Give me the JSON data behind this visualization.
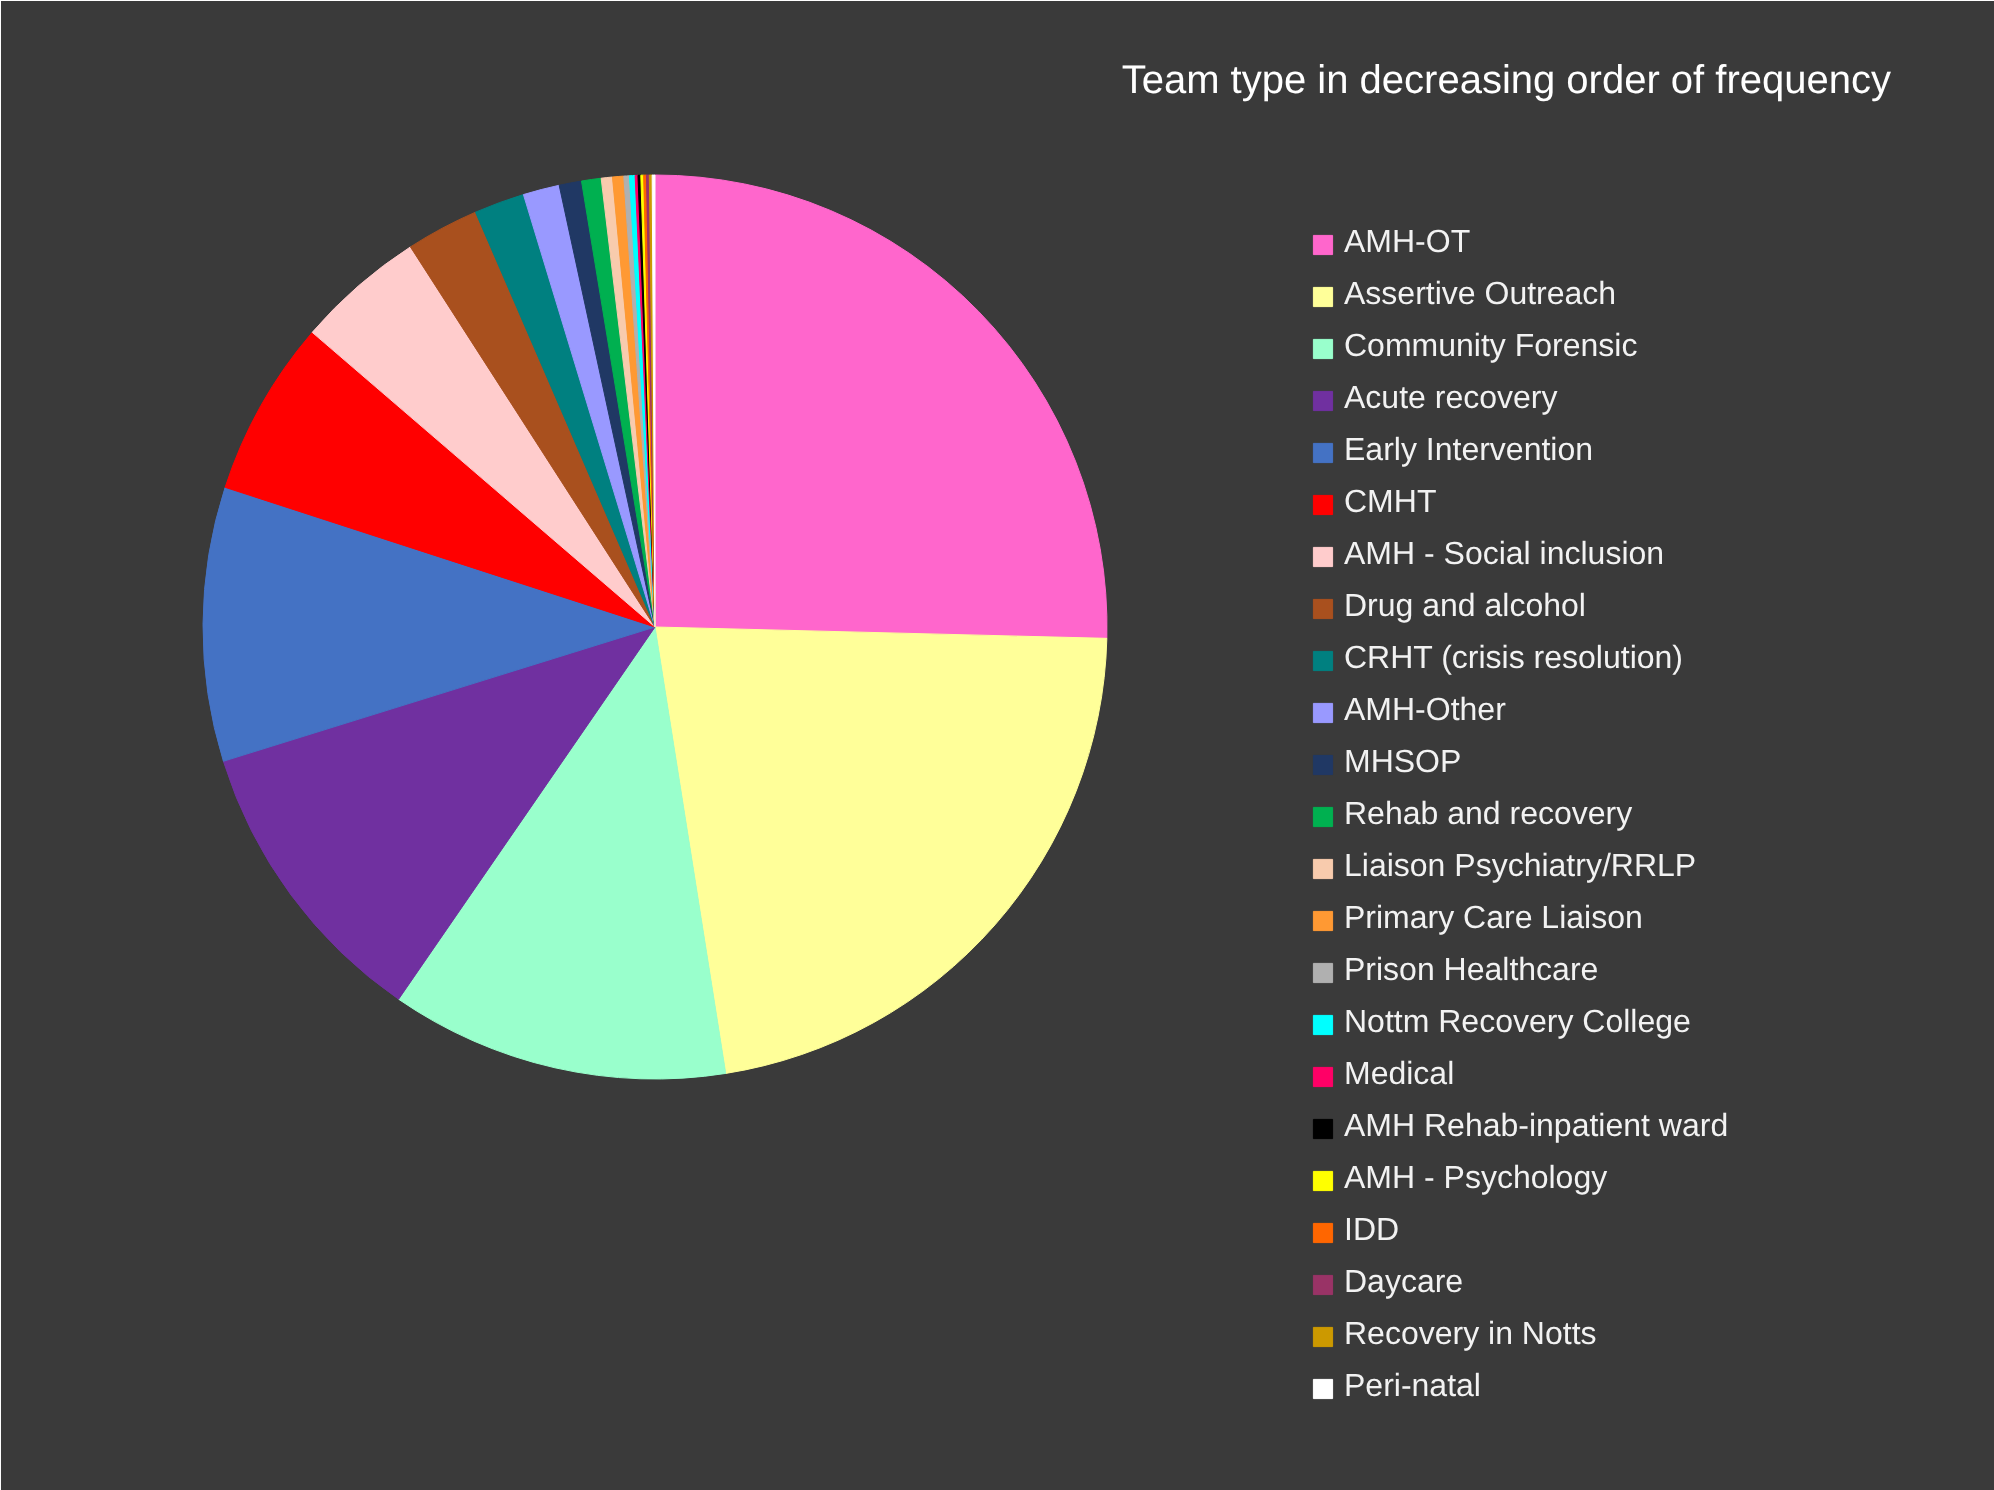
{
  "chart_data": {
    "type": "pie",
    "title": "Team type in decreasing order of frequency",
    "legend": "right",
    "categories": [
      "AMH-OT",
      "Assertive Outreach",
      "Community Forensic",
      "Acute recovery",
      "Early Intervention",
      "CMHT",
      "AMH - Social inclusion",
      "Drug and alcohol",
      "CRHT (crisis resolution)",
      "AMH-Other",
      "MHSOP",
      "Rehab and recovery",
      "Liaison Psychiatry/RRLP",
      "Primary Care Liaison",
      "Prison Healthcare",
      "Nottm Recovery College",
      "Medical",
      "AMH Rehab-inpatient ward",
      "AMH - Psychology",
      "IDD",
      "Daycare",
      "Recovery in Notts",
      "Peri-natal"
    ],
    "values": [
      25.4,
      22.1,
      12.1,
      10.6,
      9.8,
      6.3,
      4.6,
      2.6,
      1.8,
      1.3,
      0.8,
      0.7,
      0.4,
      0.4,
      0.2,
      0.2,
      0.1,
      0.1,
      0.1,
      0.1,
      0.1,
      0.1,
      0.1
    ],
    "colors": [
      "#ff66cc",
      "#ffff99",
      "#99ffcc",
      "#7030a0",
      "#4472c4",
      "#ff0000",
      "#ffcccc",
      "#a9501e",
      "#008080",
      "#9999ff",
      "#203864",
      "#00b050",
      "#f8cbad",
      "#ff9933",
      "#b0b0b0",
      "#00ffff",
      "#ff0066",
      "#000000",
      "#ffff00",
      "#ff6600",
      "#993366",
      "#cc9900",
      "#ffffff"
    ]
  }
}
